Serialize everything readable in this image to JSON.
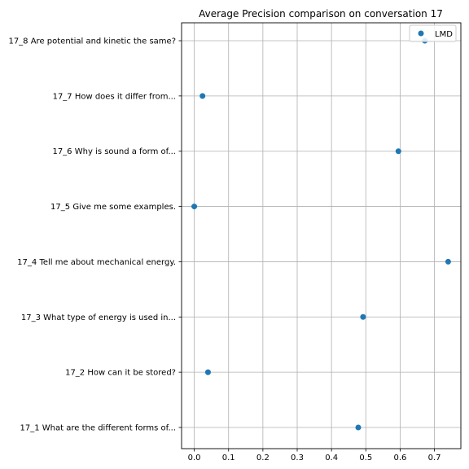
{
  "chart_data": {
    "type": "scatter",
    "title": "Average Precision comparison on conversation 17",
    "xlabel": "",
    "ylabel": "",
    "xlim": [
      -0.037,
      0.777
    ],
    "xticks": [
      0.0,
      0.1,
      0.2,
      0.3,
      0.4,
      0.5,
      0.6,
      0.7
    ],
    "xtick_labels": [
      "0.0",
      "0.1",
      "0.2",
      "0.3",
      "0.4",
      "0.5",
      "0.6",
      "0.7"
    ],
    "categories": [
      "17_1 What are the different forms of...",
      "17_2 How can it be stored?",
      "17_3 What type of energy is used in...",
      "17_4 Tell me about mechanical energy.",
      "17_5 Give me some examples.",
      "17_6 Why is sound a form of...",
      "17_7 How does it differ from...",
      "17_8 Are potential and kinetic the same?"
    ],
    "series": [
      {
        "name": "LMD",
        "color": "#1f77b4",
        "values": [
          0.478,
          0.04,
          0.492,
          0.74,
          0.0,
          0.595,
          0.024,
          0.672
        ]
      }
    ],
    "grid": true,
    "legend": "top-right"
  }
}
